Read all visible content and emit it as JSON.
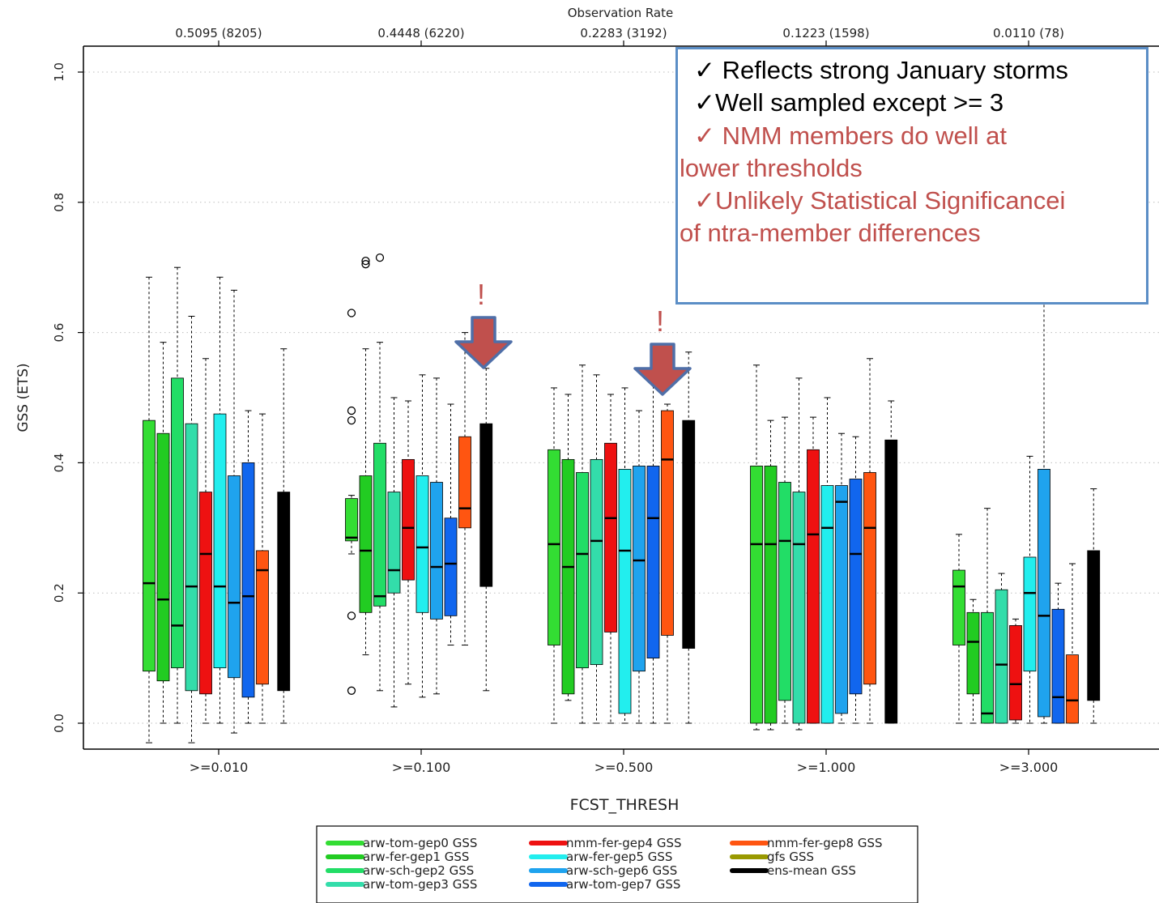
{
  "chart_data": {
    "type": "box",
    "xlabel": "FCST_THRESH",
    "ylabel": "GSS (ETS)",
    "top_axis_title": "Observation Rate",
    "top_axis_labels": [
      "0.5095 (8205)",
      "0.4448 (6220)",
      "0.2283 (3192)",
      "0.1223 (1598)",
      "0.0110 (78)"
    ],
    "categories": [
      ">=0.010",
      ">=0.100",
      ">=0.500",
      ">=1.000",
      ">=3.000"
    ],
    "ylim": [
      -0.04,
      1.03
    ],
    "yticks": [
      "0.0",
      "0.2",
      "0.4",
      "0.6",
      "0.8",
      "1.0"
    ],
    "ytick_values": [
      0.0,
      0.2,
      0.4,
      0.6,
      0.8,
      1.0
    ],
    "grid": true,
    "legend_position": "bottom",
    "series": [
      {
        "name": "arw-tom-gep0 GSS",
        "color": "#33dd33",
        "boxes": [
          {
            "whislo": -0.03,
            "q1": 0.08,
            "med": 0.215,
            "q3": 0.465,
            "whishi": 0.685,
            "outliers": []
          },
          {
            "whislo": 0.26,
            "q1": 0.28,
            "med": 0.285,
            "q3": 0.345,
            "whishi": 0.35,
            "outliers": [
              0.05,
              0.165,
              0.465,
              0.48,
              0.63
            ]
          },
          {
            "whislo": 0.0,
            "q1": 0.12,
            "med": 0.275,
            "q3": 0.42,
            "whishi": 0.515,
            "outliers": []
          },
          {
            "whislo": -0.01,
            "q1": 0.0,
            "med": 0.275,
            "q3": 0.395,
            "whishi": 0.55,
            "outliers": []
          },
          {
            "whislo": 0.0,
            "q1": 0.12,
            "med": 0.21,
            "q3": 0.235,
            "whishi": 0.29,
            "outliers": []
          }
        ]
      },
      {
        "name": "arw-fer-gep1 GSS",
        "color": "#22cc22",
        "boxes": [
          {
            "whislo": 0.0,
            "q1": 0.065,
            "med": 0.19,
            "q3": 0.445,
            "whishi": 0.585,
            "outliers": []
          },
          {
            "whislo": 0.105,
            "q1": 0.17,
            "med": 0.265,
            "q3": 0.38,
            "whishi": 0.575,
            "outliers": [
              0.71,
              0.705
            ]
          },
          {
            "whislo": 0.035,
            "q1": 0.045,
            "med": 0.24,
            "q3": 0.405,
            "whishi": 0.505,
            "outliers": []
          },
          {
            "whislo": -0.01,
            "q1": 0.0,
            "med": 0.275,
            "q3": 0.395,
            "whishi": 0.465,
            "outliers": []
          },
          {
            "whislo": 0.0,
            "q1": 0.045,
            "med": 0.125,
            "q3": 0.17,
            "whishi": 0.19,
            "outliers": []
          }
        ]
      },
      {
        "name": "arw-sch-gep2 GSS",
        "color": "#22dd66",
        "boxes": [
          {
            "whislo": 0.0,
            "q1": 0.085,
            "med": 0.15,
            "q3": 0.53,
            "whishi": 0.7,
            "outliers": []
          },
          {
            "whislo": 0.05,
            "q1": 0.18,
            "med": 0.195,
            "q3": 0.43,
            "whishi": 0.585,
            "outliers": [
              0.715
            ]
          },
          {
            "whislo": 0.0,
            "q1": 0.085,
            "med": 0.26,
            "q3": 0.385,
            "whishi": 0.55,
            "outliers": []
          },
          {
            "whislo": 0.0,
            "q1": 0.035,
            "med": 0.28,
            "q3": 0.37,
            "whishi": 0.47,
            "outliers": []
          },
          {
            "whislo": 0.0,
            "q1": 0.0,
            "med": 0.015,
            "q3": 0.17,
            "whishi": 0.33,
            "outliers": []
          }
        ]
      },
      {
        "name": "arw-tom-gep3 GSS",
        "color": "#33ddaa",
        "boxes": [
          {
            "whislo": -0.03,
            "q1": 0.05,
            "med": 0.21,
            "q3": 0.46,
            "whishi": 0.625,
            "outliers": []
          },
          {
            "whislo": 0.025,
            "q1": 0.2,
            "med": 0.235,
            "q3": 0.355,
            "whishi": 0.5,
            "outliers": []
          },
          {
            "whislo": 0.0,
            "q1": 0.09,
            "med": 0.28,
            "q3": 0.405,
            "whishi": 0.535,
            "outliers": []
          },
          {
            "whislo": -0.01,
            "q1": 0.0,
            "med": 0.275,
            "q3": 0.355,
            "whishi": 0.53,
            "outliers": []
          },
          {
            "whislo": 0.0,
            "q1": 0.0,
            "med": 0.09,
            "q3": 0.205,
            "whishi": 0.23,
            "outliers": []
          }
        ]
      },
      {
        "name": "nmm-fer-gep4 GSS",
        "color": "#ee1111",
        "boxes": [
          {
            "whislo": 0.0,
            "q1": 0.045,
            "med": 0.26,
            "q3": 0.355,
            "whishi": 0.56,
            "outliers": []
          },
          {
            "whislo": 0.06,
            "q1": 0.22,
            "med": 0.3,
            "q3": 0.405,
            "whishi": 0.495,
            "outliers": []
          },
          {
            "whislo": 0.0,
            "q1": 0.14,
            "med": 0.315,
            "q3": 0.43,
            "whishi": 0.505,
            "outliers": []
          },
          {
            "whislo": 0.0,
            "q1": 0.0,
            "med": 0.29,
            "q3": 0.42,
            "whishi": 0.47,
            "outliers": []
          },
          {
            "whislo": 0.0,
            "q1": 0.005,
            "med": 0.06,
            "q3": 0.15,
            "whishi": 0.16,
            "outliers": []
          }
        ]
      },
      {
        "name": "arw-fer-gep5 GSS",
        "color": "#22eeee",
        "boxes": [
          {
            "whislo": 0.0,
            "q1": 0.085,
            "med": 0.21,
            "q3": 0.475,
            "whishi": 0.685,
            "outliers": []
          },
          {
            "whislo": 0.04,
            "q1": 0.17,
            "med": 0.27,
            "q3": 0.38,
            "whishi": 0.535,
            "outliers": []
          },
          {
            "whislo": 0.0,
            "q1": 0.015,
            "med": 0.265,
            "q3": 0.39,
            "whishi": 0.515,
            "outliers": []
          },
          {
            "whislo": 0.0,
            "q1": 0.0,
            "med": 0.3,
            "q3": 0.365,
            "whishi": 0.5,
            "outliers": []
          },
          {
            "whislo": 0.0,
            "q1": 0.08,
            "med": 0.2,
            "q3": 0.255,
            "whishi": 0.41,
            "outliers": []
          }
        ]
      },
      {
        "name": "arw-sch-gep6 GSS",
        "color": "#1fa3ee",
        "boxes": [
          {
            "whislo": -0.015,
            "q1": 0.07,
            "med": 0.185,
            "q3": 0.38,
            "whishi": 0.665,
            "outliers": []
          },
          {
            "whislo": 0.045,
            "q1": 0.16,
            "med": 0.24,
            "q3": 0.37,
            "whishi": 0.53,
            "outliers": []
          },
          {
            "whislo": 0.0,
            "q1": 0.08,
            "med": 0.25,
            "q3": 0.395,
            "whishi": 0.48,
            "outliers": []
          },
          {
            "whislo": 0.0,
            "q1": 0.015,
            "med": 0.34,
            "q3": 0.365,
            "whishi": 0.445,
            "outliers": []
          },
          {
            "whislo": 0.0,
            "q1": 0.01,
            "med": 0.165,
            "q3": 0.39,
            "whishi": 0.665,
            "outliers": []
          }
        ]
      },
      {
        "name": "arw-tom-gep7 GSS",
        "color": "#1166ee",
        "boxes": [
          {
            "whislo": 0.0,
            "q1": 0.04,
            "med": 0.195,
            "q3": 0.4,
            "whishi": 0.48,
            "outliers": []
          },
          {
            "whislo": 0.12,
            "q1": 0.165,
            "med": 0.245,
            "q3": 0.315,
            "whishi": 0.49,
            "outliers": []
          },
          {
            "whislo": 0.0,
            "q1": 0.1,
            "med": 0.315,
            "q3": 0.395,
            "whishi": 0.57,
            "outliers": []
          },
          {
            "whislo": 0.0,
            "q1": 0.045,
            "med": 0.26,
            "q3": 0.375,
            "whishi": 0.44,
            "outliers": []
          },
          {
            "whislo": 0.0,
            "q1": 0.0,
            "med": 0.04,
            "q3": 0.175,
            "whishi": 0.215,
            "outliers": []
          }
        ]
      },
      {
        "name": "nmm-fer-gep8 GSS",
        "color": "#ff5511",
        "boxes": [
          {
            "whislo": 0.0,
            "q1": 0.06,
            "med": 0.235,
            "q3": 0.265,
            "whishi": 0.475,
            "outliers": []
          },
          {
            "whislo": 0.12,
            "q1": 0.3,
            "med": 0.33,
            "q3": 0.44,
            "whishi": 0.6,
            "outliers": []
          },
          {
            "whislo": 0.0,
            "q1": 0.135,
            "med": 0.405,
            "q3": 0.48,
            "whishi": 0.49,
            "outliers": []
          },
          {
            "whislo": 0.0,
            "q1": 0.06,
            "med": 0.3,
            "q3": 0.385,
            "whishi": 0.56,
            "outliers": []
          },
          {
            "whislo": 0.0,
            "q1": 0.0,
            "med": 0.035,
            "q3": 0.105,
            "whishi": 0.245,
            "outliers": []
          }
        ]
      },
      {
        "name": "gfs GSS",
        "color": "#999900",
        "boxes": []
      },
      {
        "name": "ens-mean GSS",
        "color": "#000000",
        "boxes": [
          {
            "whislo": 0.0,
            "q1": 0.05,
            "med": 0.2,
            "q3": 0.355,
            "whishi": 0.575,
            "outliers": []
          },
          {
            "whislo": 0.05,
            "q1": 0.21,
            "med": 0.3,
            "q3": 0.46,
            "whishi": 0.545,
            "outliers": []
          },
          {
            "whislo": 0.0,
            "q1": 0.115,
            "med": 0.3,
            "q3": 0.465,
            "whishi": 0.57,
            "outliers": []
          },
          {
            "whislo": 0.0,
            "q1": 0.0,
            "med": 0.2,
            "q3": 0.435,
            "whishi": 0.495,
            "outliers": []
          },
          {
            "whislo": 0.0,
            "q1": 0.035,
            "med": 0.15,
            "q3": 0.265,
            "whishi": 0.36,
            "outliers": []
          }
        ]
      }
    ],
    "arrow_color": "#c0504d",
    "arrow_outline_color": "#4f6fa8",
    "arrow_markers": [
      {
        "category": ">=0.100",
        "label": "!"
      },
      {
        "category": ">=0.500",
        "label": "!"
      }
    ]
  },
  "annotation": {
    "border_color": "#5b8ec6",
    "lines": [
      {
        "text": "✓ Reflects strong January storms",
        "color": "#000000"
      },
      {
        "text": "✓Well sampled except >= 3",
        "color": "#000000"
      },
      {
        "text": "✓ NMM members do well at",
        "color": "#c0504d"
      },
      {
        "text": "lower thresholds",
        "color": "#c0504d"
      },
      {
        "text": "✓Unlikely Statistical Significancei",
        "color": "#c0504d"
      },
      {
        "text": "of ntra-member differences",
        "color": "#c0504d"
      }
    ]
  }
}
